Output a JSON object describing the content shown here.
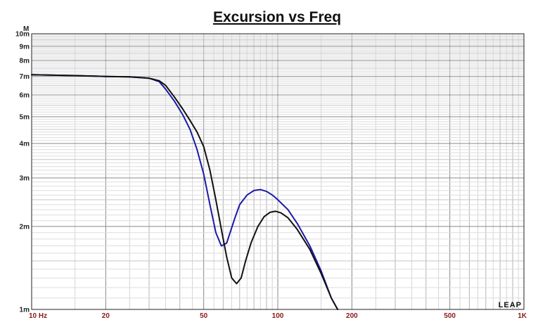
{
  "chart_data": {
    "type": "line",
    "title": "Excursion vs Freq",
    "xlabel": "",
    "ylabel": "",
    "x_scale": "log",
    "y_scale": "log",
    "xlim": [
      10,
      1000
    ],
    "ylim": [
      1,
      10
    ],
    "grid": true,
    "y_unit_label": "M",
    "x_tick_labels": [
      {
        "value": 10,
        "label": "10  Hz"
      },
      {
        "value": 20,
        "label": "20"
      },
      {
        "value": 50,
        "label": "50"
      },
      {
        "value": 100,
        "label": "100"
      },
      {
        "value": 200,
        "label": "200"
      },
      {
        "value": 500,
        "label": "500"
      },
      {
        "value": 1000,
        "label": "1K"
      }
    ],
    "y_tick_labels": [
      {
        "value": 10,
        "label": "10m"
      },
      {
        "value": 9,
        "label": "9m"
      },
      {
        "value": 8,
        "label": "8m"
      },
      {
        "value": 7,
        "label": "7m"
      },
      {
        "value": 6,
        "label": "6m"
      },
      {
        "value": 5,
        "label": "5m"
      },
      {
        "value": 4,
        "label": "4m"
      },
      {
        "value": 3,
        "label": "3m"
      },
      {
        "value": 2,
        "label": "2m"
      },
      {
        "value": 1,
        "label": "1m"
      }
    ],
    "series": [
      {
        "color": "#1a1aa6",
        "x": [
          10,
          15,
          20,
          25,
          30,
          33,
          35,
          38,
          41,
          44,
          47,
          50,
          53,
          56,
          59,
          62,
          64,
          67,
          70,
          75,
          80,
          85,
          90,
          95,
          100,
          110,
          120,
          135,
          150,
          165,
          175
        ],
        "y": [
          7.1,
          7.05,
          7.0,
          6.98,
          6.9,
          6.7,
          6.3,
          5.7,
          5.1,
          4.5,
          3.8,
          3.1,
          2.4,
          1.9,
          1.7,
          1.74,
          1.9,
          2.15,
          2.4,
          2.6,
          2.7,
          2.72,
          2.68,
          2.6,
          2.5,
          2.3,
          2.05,
          1.7,
          1.38,
          1.1,
          1.0
        ]
      },
      {
        "color": "#111111",
        "x": [
          10,
          15,
          20,
          25,
          30,
          33,
          35,
          38,
          41,
          44,
          47,
          50,
          53,
          56,
          59,
          62,
          65,
          68,
          71,
          74,
          78,
          83,
          88,
          93,
          98,
          103,
          110,
          120,
          135,
          150,
          165,
          175
        ],
        "y": [
          7.1,
          7.05,
          7.0,
          6.98,
          6.9,
          6.75,
          6.5,
          5.9,
          5.35,
          4.85,
          4.4,
          3.9,
          3.2,
          2.5,
          1.95,
          1.55,
          1.3,
          1.24,
          1.3,
          1.5,
          1.75,
          2.0,
          2.17,
          2.25,
          2.27,
          2.24,
          2.15,
          1.95,
          1.65,
          1.35,
          1.1,
          1.0
        ]
      }
    ],
    "logo_text": "LEAP"
  }
}
